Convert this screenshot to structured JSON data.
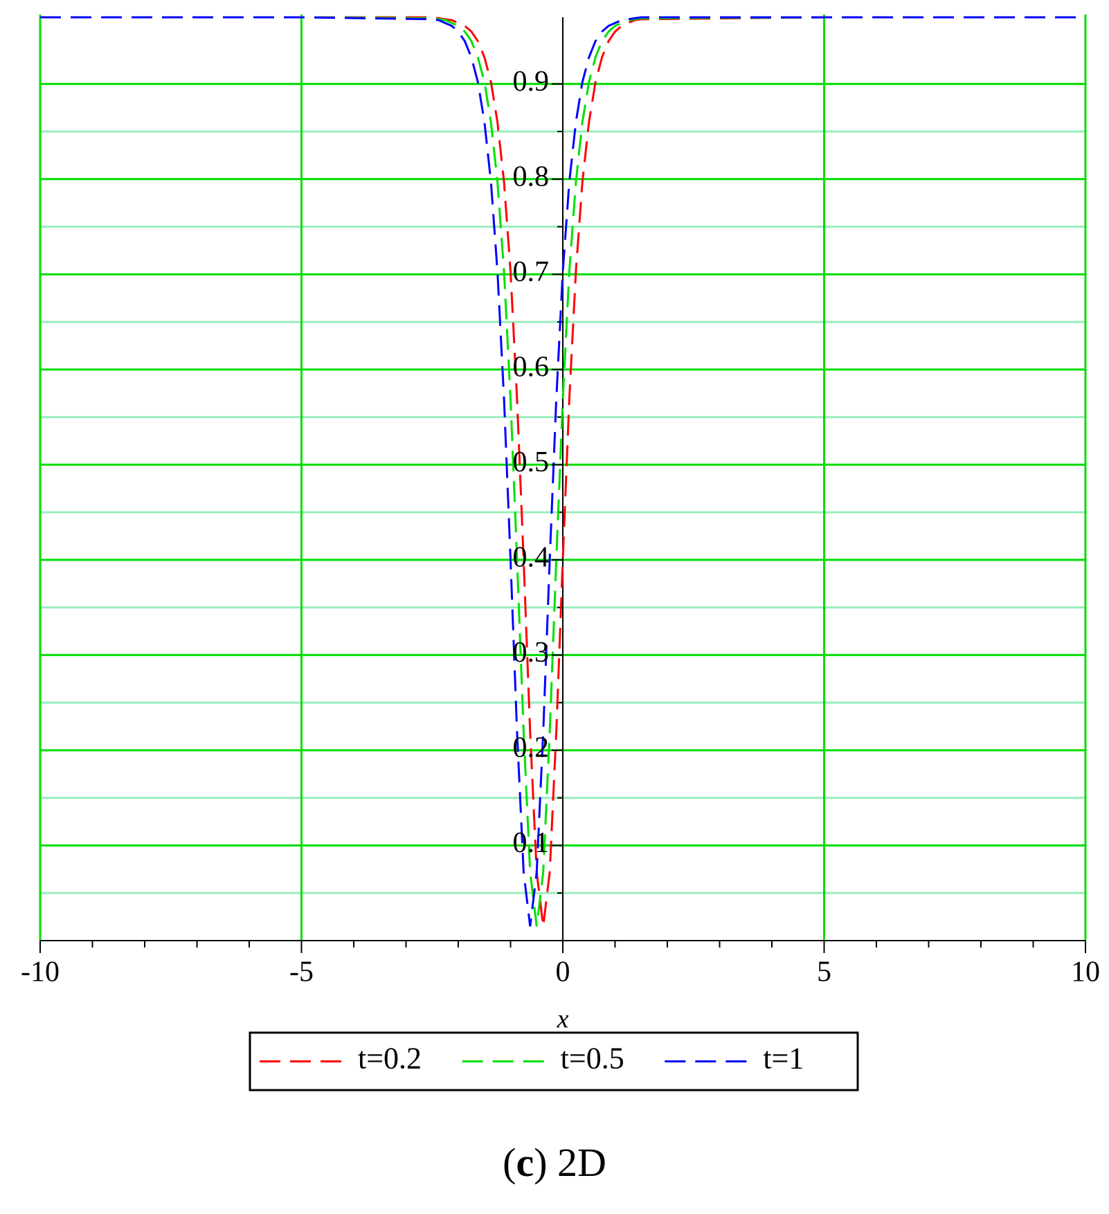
{
  "chart_data": {
    "type": "line",
    "x": [
      -10,
      -5,
      -2.5,
      -2.375,
      -2.25,
      -2.125,
      -2,
      -1.875,
      -1.75,
      -1.625,
      -1.5,
      -1.375,
      -1.25,
      -1.125,
      -1,
      -0.875,
      -0.75,
      -0.625,
      -0.5,
      -0.375,
      -0.25,
      -0.125,
      0,
      0.125,
      0.25,
      0.375,
      0.5,
      0.625,
      0.75,
      0.875,
      1,
      1.125,
      1.25,
      1.375,
      1.5,
      5,
      10
    ],
    "series": [
      {
        "name": "t=0.2",
        "color": "#ff0000",
        "values": [
          0.97,
          0.97,
          0.97,
          0.969,
          0.968,
          0.967,
          0.964,
          0.961,
          0.955,
          0.945,
          0.928,
          0.902,
          0.86,
          0.797,
          0.703,
          0.569,
          0.4,
          0.219,
          0.072,
          0.015,
          0.072,
          0.219,
          0.4,
          0.569,
          0.703,
          0.797,
          0.86,
          0.902,
          0.928,
          0.945,
          0.955,
          0.961,
          0.964,
          0.967,
          0.968,
          0.97,
          0.97
        ]
      },
      {
        "name": "t=0.5",
        "color": "#00e000",
        "values": [
          0.97,
          0.97,
          0.969,
          0.968,
          0.967,
          0.964,
          0.961,
          0.955,
          0.945,
          0.928,
          0.902,
          0.86,
          0.797,
          0.703,
          0.569,
          0.4,
          0.219,
          0.072,
          0.015,
          0.072,
          0.219,
          0.4,
          0.569,
          0.703,
          0.797,
          0.86,
          0.902,
          0.928,
          0.945,
          0.955,
          0.961,
          0.964,
          0.967,
          0.968,
          0.969,
          0.97,
          0.97
        ]
      },
      {
        "name": "t=1",
        "color": "#0000ff",
        "values": [
          0.97,
          0.97,
          0.968,
          0.967,
          0.964,
          0.961,
          0.955,
          0.945,
          0.928,
          0.902,
          0.86,
          0.797,
          0.703,
          0.569,
          0.4,
          0.219,
          0.072,
          0.015,
          0.072,
          0.219,
          0.4,
          0.569,
          0.703,
          0.797,
          0.86,
          0.902,
          0.928,
          0.945,
          0.955,
          0.961,
          0.964,
          0.967,
          0.968,
          0.969,
          0.97,
          0.97,
          0.97
        ]
      }
    ],
    "xlabel": "x",
    "xlim": [
      -10,
      10
    ],
    "xticks": [
      -10,
      -5,
      0,
      5,
      10
    ],
    "xminorticks": [
      -9,
      -8,
      -7,
      -6,
      -4,
      -3,
      -2,
      -1,
      1,
      2,
      3,
      4,
      6,
      7,
      8,
      9
    ],
    "ylim": [
      0,
      0.97
    ],
    "yticks": [
      0.1,
      0.2,
      0.3,
      0.4,
      0.5,
      0.6,
      0.7,
      0.8,
      0.9
    ],
    "yminorticks": [
      0.05,
      0.15,
      0.25,
      0.35,
      0.45,
      0.55,
      0.65,
      0.75,
      0.85
    ],
    "grid": true,
    "grid_color": "#00dd00",
    "minor_grid_color": "#99eebb",
    "line_style": "dashed",
    "legend": "bottom"
  },
  "caption": {
    "open": "(",
    "label": "c",
    "text": ") 2D"
  }
}
